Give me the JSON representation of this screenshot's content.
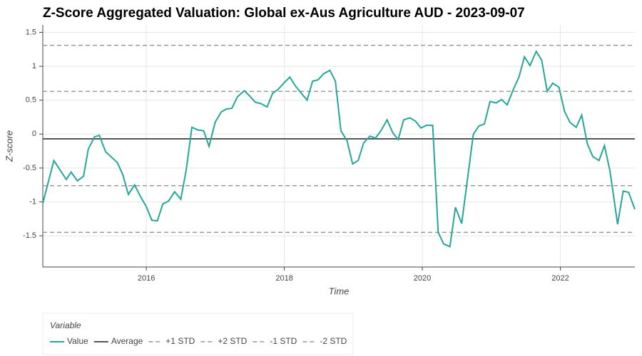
{
  "chart_data": {
    "type": "line",
    "title": "Z-Score Aggregated Valuation: Global ex-Aus Agriculture AUD - 2023-09-07",
    "x_label": "Time",
    "y_label": "Z-score",
    "xlim": [
      2014.5,
      2023.08
    ],
    "xticks": [
      2016,
      2018,
      2020,
      2022
    ],
    "ylim": [
      -1.96,
      1.61
    ],
    "yticks": [
      -1.5,
      -1,
      -0.5,
      0,
      0.5,
      1,
      1.5
    ],
    "grid": true,
    "legend_title": "Variable",
    "series": [
      {
        "name": "Value",
        "color": "#26a69a",
        "x": [
          2014.5,
          2014.66,
          2014.84,
          2014.91,
          2015.0,
          2015.09,
          2015.16,
          2015.25,
          2015.32,
          2015.41,
          2015.58,
          2015.66,
          2015.74,
          2015.83,
          2015.92,
          2016.0,
          2016.08,
          2016.16,
          2016.24,
          2016.32,
          2016.41,
          2016.5,
          2016.58,
          2016.66,
          2016.75,
          2016.83,
          2016.91,
          2017.0,
          2017.09,
          2017.16,
          2017.24,
          2017.32,
          2017.42,
          2017.5,
          2017.58,
          2017.66,
          2017.75,
          2017.83,
          2017.91,
          2018.0,
          2018.08,
          2018.16,
          2018.24,
          2018.33,
          2018.41,
          2018.49,
          2018.57,
          2018.66,
          2018.74,
          2018.82,
          2018.91,
          2018.99,
          2019.07,
          2019.15,
          2019.24,
          2019.32,
          2019.4,
          2019.49,
          2019.57,
          2019.65,
          2019.73,
          2019.82,
          2019.9,
          2019.98,
          2020.06,
          2020.15,
          2020.23,
          2020.31,
          2020.4,
          2020.48,
          2020.57,
          2020.65,
          2020.74,
          2020.82,
          2020.9,
          2020.98,
          2021.07,
          2021.15,
          2021.23,
          2021.32,
          2021.4,
          2021.48,
          2021.56,
          2021.65,
          2021.73,
          2021.81,
          2021.89,
          2021.98,
          2022.06,
          2022.14,
          2022.23,
          2022.31,
          2022.39,
          2022.47,
          2022.56,
          2022.64,
          2022.72,
          2022.83,
          2022.91,
          2022.99,
          2023.08
        ],
        "values": [
          -1.02,
          -0.39,
          -0.67,
          -0.56,
          -0.69,
          -0.62,
          -0.22,
          -0.04,
          -0.02,
          -0.26,
          -0.42,
          -0.6,
          -0.89,
          -0.75,
          -0.93,
          -1.07,
          -1.27,
          -1.28,
          -1.03,
          -0.99,
          -0.85,
          -0.96,
          -0.52,
          0.1,
          0.06,
          0.05,
          -0.18,
          0.18,
          0.33,
          0.37,
          0.38,
          0.55,
          0.64,
          0.56,
          0.47,
          0.45,
          0.4,
          0.6,
          0.66,
          0.76,
          0.84,
          0.71,
          0.61,
          0.5,
          0.78,
          0.8,
          0.89,
          0.94,
          0.78,
          0.05,
          -0.1,
          -0.44,
          -0.39,
          -0.13,
          -0.03,
          -0.06,
          0.05,
          0.21,
          0.02,
          -0.08,
          0.21,
          0.24,
          0.19,
          0.09,
          0.13,
          0.13,
          -1.45,
          -1.62,
          -1.66,
          -1.08,
          -1.32,
          -0.7,
          0.0,
          0.12,
          0.15,
          0.48,
          0.46,
          0.51,
          0.43,
          0.66,
          0.84,
          1.14,
          1.01,
          1.22,
          1.09,
          0.63,
          0.75,
          0.69,
          0.34,
          0.17,
          0.1,
          0.28,
          -0.14,
          -0.33,
          -0.39,
          -0.17,
          -0.55,
          -1.33,
          -0.84,
          -0.86,
          -1.11
        ]
      }
    ],
    "reference_lines": [
      {
        "name": "Average",
        "value": -0.07,
        "color": "#555555",
        "dashed": false
      },
      {
        "name": "+1 STD",
        "value": 0.63,
        "color": "#999999",
        "dashed": true
      },
      {
        "name": "+2 STD",
        "value": 1.31,
        "color": "#999999",
        "dashed": true
      },
      {
        "name": "-1 STD",
        "value": -0.76,
        "color": "#999999",
        "dashed": true
      },
      {
        "name": "-2 STD",
        "value": -1.45,
        "color": "#999999",
        "dashed": true
      }
    ]
  }
}
